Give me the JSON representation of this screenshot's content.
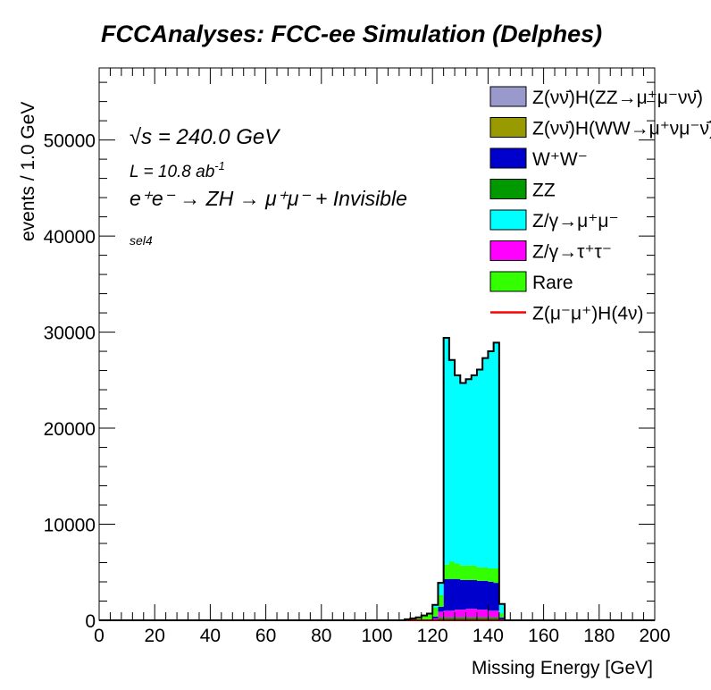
{
  "chart_data": {
    "type": "area",
    "title": "FCCAnalyses: FCC-ee Simulation (Delphes)",
    "xlabel": "Missing Energy [GeV]",
    "ylabel": "events / 1.0 GeV",
    "xlim": [
      0,
      200
    ],
    "ylim": [
      0,
      57500
    ],
    "stacked": true,
    "xticks": [
      "0",
      "20",
      "40",
      "60",
      "80",
      "100",
      "120",
      "140",
      "160",
      "180",
      "200"
    ],
    "yticks": [
      "0",
      "10000",
      "20000",
      "30000",
      "40000",
      "50000"
    ],
    "annotations": {
      "energy": "√s = 240.0 GeV",
      "lumi": "L = 10.8 ab",
      "lumi_exp": "-1",
      "process": "e⁺e⁻ → ZH → μ⁺μ⁻ + Invisible",
      "selection": "sel4"
    },
    "legend_position": "top-right",
    "x": [
      104,
      106,
      108,
      110,
      112,
      114,
      116,
      118,
      120,
      122,
      124,
      126,
      128,
      130,
      132,
      134,
      136,
      138,
      140,
      142,
      144,
      146
    ],
    "series": [
      {
        "name": "Rare",
        "color": "#33ff00",
        "values": [
          0,
          0,
          0,
          100,
          200,
          300,
          500,
          700,
          900,
          1200,
          1500,
          1800,
          1600,
          1500,
          1500,
          1500,
          1400,
          1400,
          1400,
          1500,
          400,
          0
        ]
      },
      {
        "name": "Z/γ→τ⁺τ⁻",
        "color": "#ff00ff",
        "values": [
          0,
          0,
          0,
          0,
          0,
          0,
          0,
          0,
          200,
          600,
          700,
          700,
          800,
          800,
          900,
          900,
          800,
          800,
          700,
          700,
          100,
          0
        ]
      },
      {
        "name": "Z/γ→μ⁺μ⁻",
        "color": "#00ffff",
        "values": [
          0,
          0,
          0,
          0,
          0,
          0,
          0,
          0,
          300,
          1300,
          23600,
          21000,
          19600,
          19000,
          19400,
          19800,
          20600,
          21800,
          22600,
          23500,
          1000,
          0
        ]
      },
      {
        "name": "ZZ",
        "color": "#009900",
        "values": [
          0,
          0,
          0,
          0,
          0,
          0,
          0,
          0,
          0,
          300,
          300,
          300,
          300,
          300,
          300,
          300,
          300,
          300,
          300,
          300,
          0,
          0
        ]
      },
      {
        "name": "W⁺W⁻",
        "color": "#0000cc",
        "values": [
          0,
          0,
          0,
          0,
          0,
          0,
          0,
          0,
          200,
          500,
          3300,
          3300,
          3200,
          3100,
          3000,
          3000,
          3000,
          3000,
          3000,
          2900,
          200,
          0
        ]
      },
      {
        "name": "Z(νν̄)H(WW→μ⁺νμ⁻ν̄)",
        "color": "#999900",
        "values": [
          0,
          0,
          0,
          0,
          0,
          0,
          0,
          0,
          0,
          0,
          0,
          0,
          0,
          0,
          0,
          0,
          0,
          0,
          0,
          0,
          0,
          0
        ]
      },
      {
        "name": "Z(νν̄)H(ZZ→μ⁺μ⁻νν̄)",
        "color": "#9999cc",
        "values": [
          0,
          0,
          0,
          0,
          0,
          0,
          0,
          0,
          0,
          0,
          0,
          0,
          0,
          0,
          0,
          0,
          0,
          0,
          0,
          0,
          0,
          0
        ]
      },
      {
        "name": "Z(μ⁻μ⁺)H(4ν)",
        "color": "#ff0000",
        "style": "line",
        "values": [
          0,
          0,
          0,
          0,
          0,
          0,
          0,
          0,
          0,
          0,
          0,
          0,
          0,
          0,
          0,
          0,
          0,
          0,
          0,
          0,
          0,
          0
        ]
      }
    ],
    "stack_order": [
      "ZZ",
      "Z/γ→τ⁺τ⁻",
      "W⁺W⁻",
      "Rare",
      "Z/γ→μ⁺μ⁻",
      "Z(νν̄)H(WW→μ⁺νμ⁻ν̄)",
      "Z(νν̄)H(ZZ→μ⁺μ⁻νν̄)"
    ],
    "legend": [
      {
        "label": "Z(νν̄)H(ZZ→μ⁺μ⁻νν̄)",
        "color": "#9999cc",
        "kind": "box"
      },
      {
        "label": "Z(νν̄)H(WW→μ⁺νμ⁻ν̄)",
        "color": "#999900",
        "kind": "box"
      },
      {
        "label": "W⁺W⁻",
        "color": "#0000cc",
        "kind": "box"
      },
      {
        "label": "ZZ",
        "color": "#009900",
        "kind": "box"
      },
      {
        "label": "Z/γ→μ⁺μ⁻",
        "color": "#00ffff",
        "kind": "box"
      },
      {
        "label": "Z/γ→τ⁺τ⁻",
        "color": "#ff00ff",
        "kind": "box"
      },
      {
        "label": "Rare",
        "color": "#33ff00",
        "kind": "box"
      },
      {
        "label": "Z(μ⁻μ⁺)H(4ν)",
        "color": "#ff0000",
        "kind": "line"
      }
    ]
  }
}
